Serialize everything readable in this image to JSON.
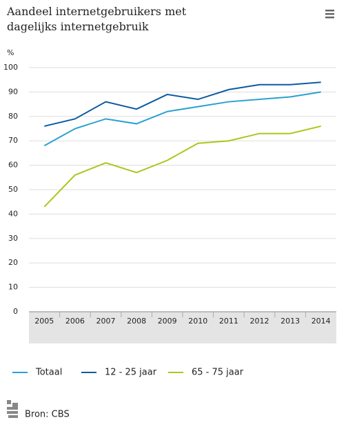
{
  "chart_data": {
    "type": "line",
    "title": "Aandeel internetgebruikers met dagelijks internetgebruik",
    "y_label": "%",
    "categories": [
      "2005",
      "2006",
      "2007",
      "2008",
      "2009",
      "2010",
      "2011",
      "2012",
      "2013",
      "2014"
    ],
    "series": [
      {
        "name": "Totaal",
        "color": "#2aa0d0",
        "values": [
          68,
          75,
          79,
          77,
          82,
          84,
          86,
          87,
          88,
          90
        ]
      },
      {
        "name": "12 - 25 jaar",
        "color": "#0b5aa0",
        "values": [
          76,
          79,
          86,
          83,
          89,
          87,
          91,
          93,
          93,
          94
        ]
      },
      {
        "name": "65 - 75 jaar",
        "color": "#a8c81a",
        "values": [
          43,
          56,
          61,
          57,
          62,
          69,
          70,
          73,
          73,
          76
        ]
      }
    ],
    "ylim": [
      0,
      100
    ],
    "yticks": [
      0,
      10,
      20,
      30,
      40,
      50,
      60,
      70,
      80,
      90,
      100
    ],
    "grid": true,
    "legend": "bottom",
    "source": "Bron: CBS"
  }
}
